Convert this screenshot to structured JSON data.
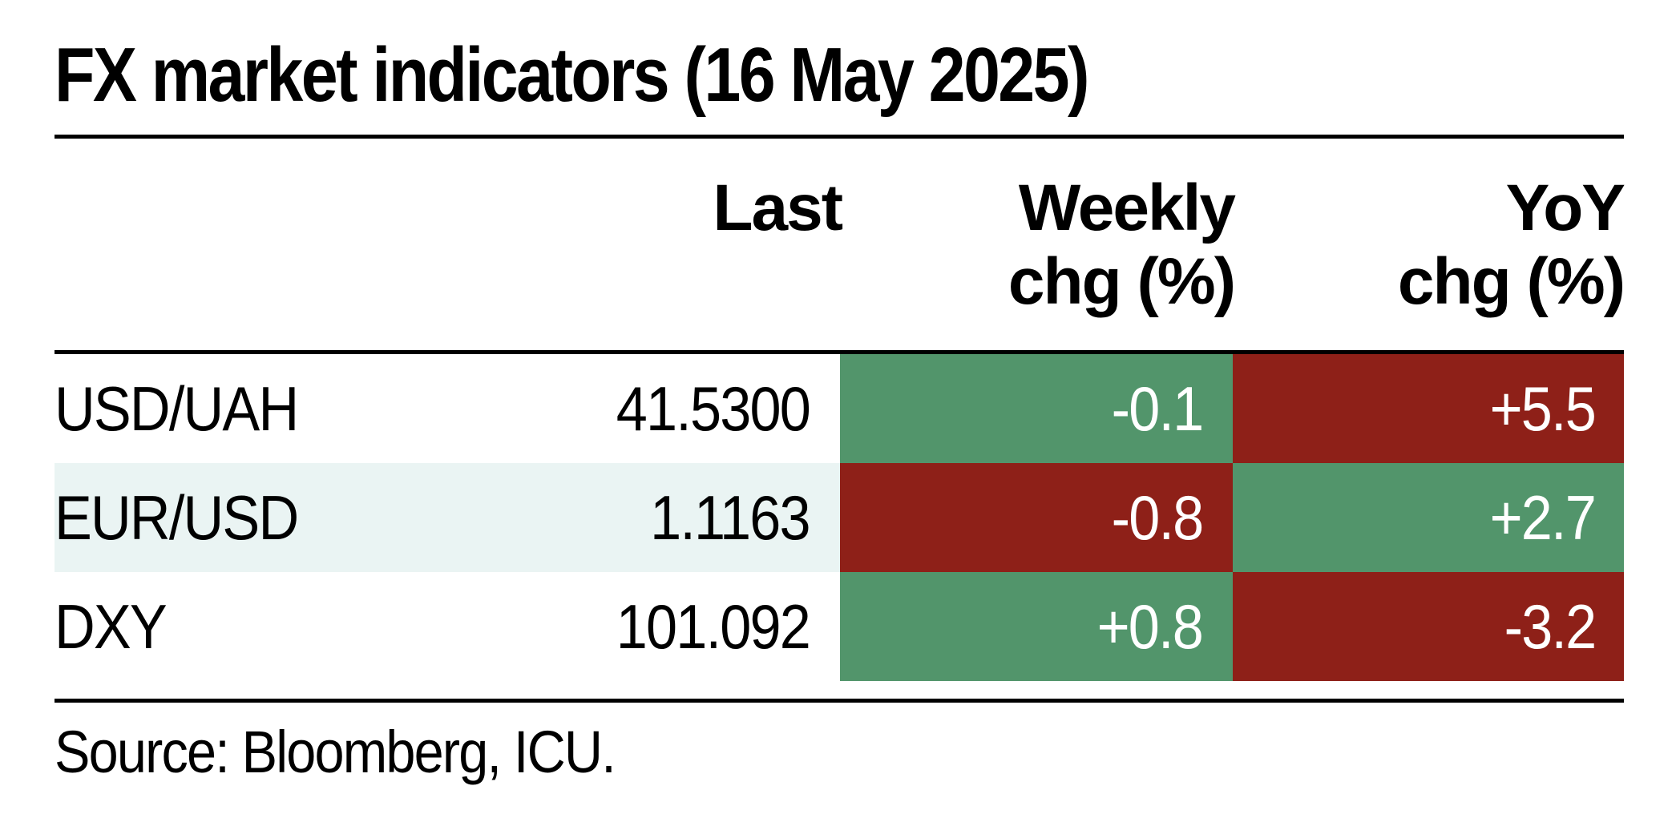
{
  "title": "FX market indicators (16 May 2025)",
  "colors": {
    "positive": "#52956b",
    "negative": "#8e2018",
    "row_shade": "#eaf4f3"
  },
  "headers": {
    "last": "Last",
    "weekly_line1": "Weekly",
    "weekly_line2": "chg (%)",
    "yoy_line1": "YoY",
    "yoy_line2": "chg (%)"
  },
  "rows": [
    {
      "name": "USD/UAH",
      "last": "41.5300",
      "weekly": "-0.1",
      "weekly_color": "#52956b",
      "yoy": "+5.5",
      "yoy_color": "#8e2018"
    },
    {
      "name": "EUR/USD",
      "last": "1.1163",
      "weekly": "-0.8",
      "weekly_color": "#8e2018",
      "yoy": "+2.7",
      "yoy_color": "#52956b"
    },
    {
      "name": "DXY",
      "last": "101.092",
      "weekly": "+0.8",
      "weekly_color": "#52956b",
      "yoy": "-3.2",
      "yoy_color": "#8e2018"
    }
  ],
  "source": "Source: Bloomberg, ICU."
}
